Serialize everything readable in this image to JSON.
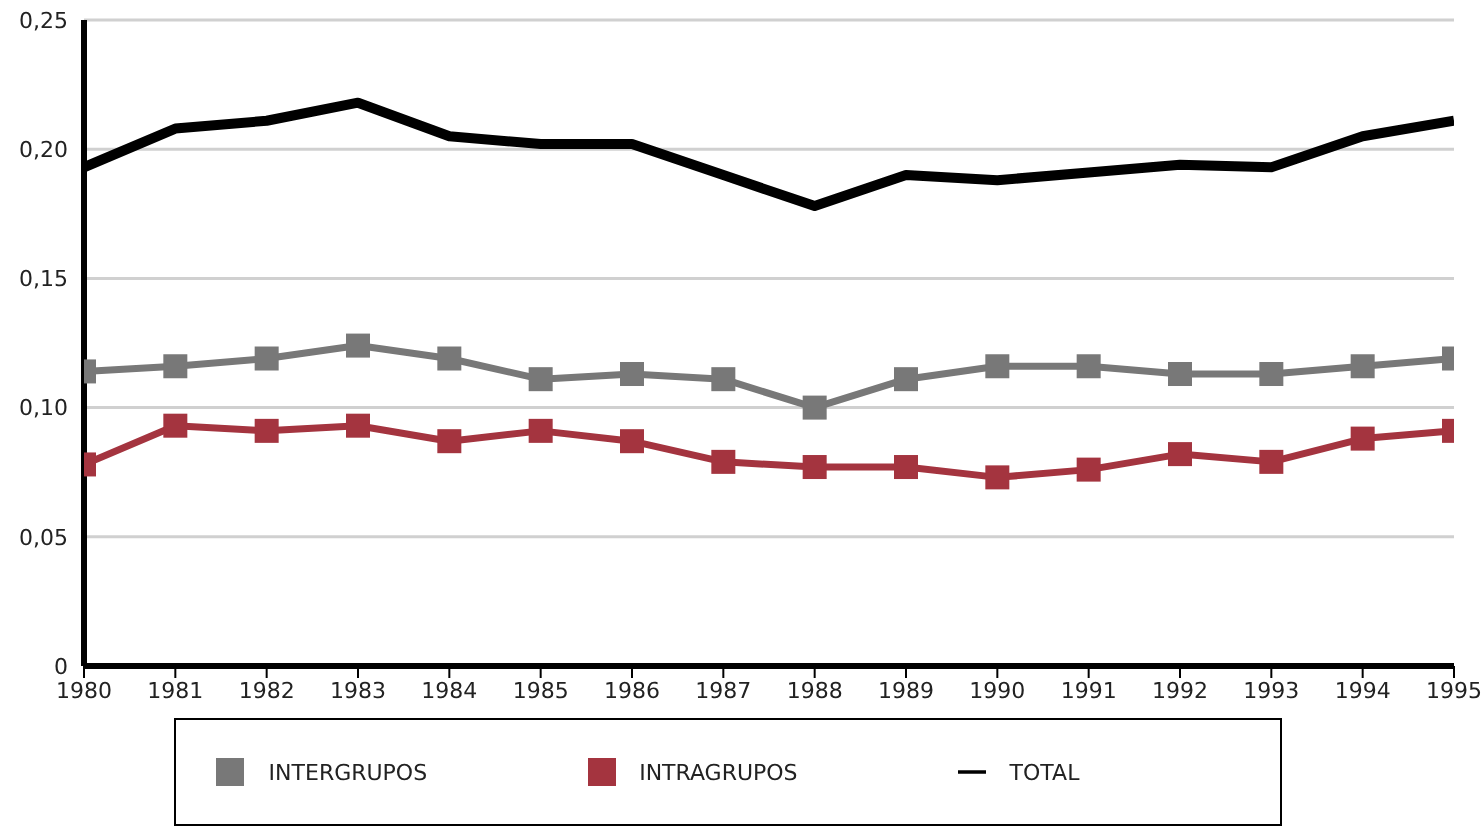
{
  "chart_data": {
    "type": "line",
    "x": [
      1980,
      1981,
      1982,
      1983,
      1984,
      1985,
      1986,
      1987,
      1988,
      1989,
      1990,
      1991,
      1992,
      1993,
      1994,
      1995
    ],
    "series": [
      {
        "name": "INTRAGRUPOS",
        "color": "#a4343f",
        "marker": "square",
        "values": [
          0.078,
          0.093,
          0.091,
          0.093,
          0.087,
          0.091,
          0.087,
          0.079,
          0.077,
          0.077,
          0.073,
          0.076,
          0.082,
          0.079,
          0.088,
          0.091
        ]
      },
      {
        "name": "INTERGRUPOS",
        "color": "#787878",
        "marker": "square",
        "values": [
          0.114,
          0.116,
          0.119,
          0.124,
          0.119,
          0.111,
          0.113,
          0.111,
          0.1,
          0.111,
          0.116,
          0.116,
          0.113,
          0.113,
          0.116,
          0.119
        ]
      },
      {
        "name": "TOTAL",
        "color": "#000000",
        "marker": "none",
        "values": [
          0.193,
          0.208,
          0.211,
          0.218,
          0.205,
          0.202,
          0.202,
          0.19,
          0.178,
          0.19,
          0.188,
          0.191,
          0.194,
          0.193,
          0.205,
          0.211
        ]
      }
    ],
    "xlim": [
      1980,
      1995
    ],
    "xticks": [
      1980,
      1981,
      1982,
      1983,
      1984,
      1985,
      1986,
      1987,
      1988,
      1989,
      1990,
      1991,
      1992,
      1993,
      1994,
      1995
    ],
    "ylim": [
      0,
      0.25
    ],
    "yticks": [
      {
        "value": 0,
        "label": "0"
      },
      {
        "value": 0.05,
        "label": "0,05"
      },
      {
        "value": 0.1,
        "label": "0,10"
      },
      {
        "value": 0.15,
        "label": "0,15"
      },
      {
        "value": 0.2,
        "label": "0,20"
      },
      {
        "value": 0.25,
        "label": "0,25"
      }
    ],
    "grid": "y",
    "legend": "bottom",
    "line_style": "solid"
  }
}
